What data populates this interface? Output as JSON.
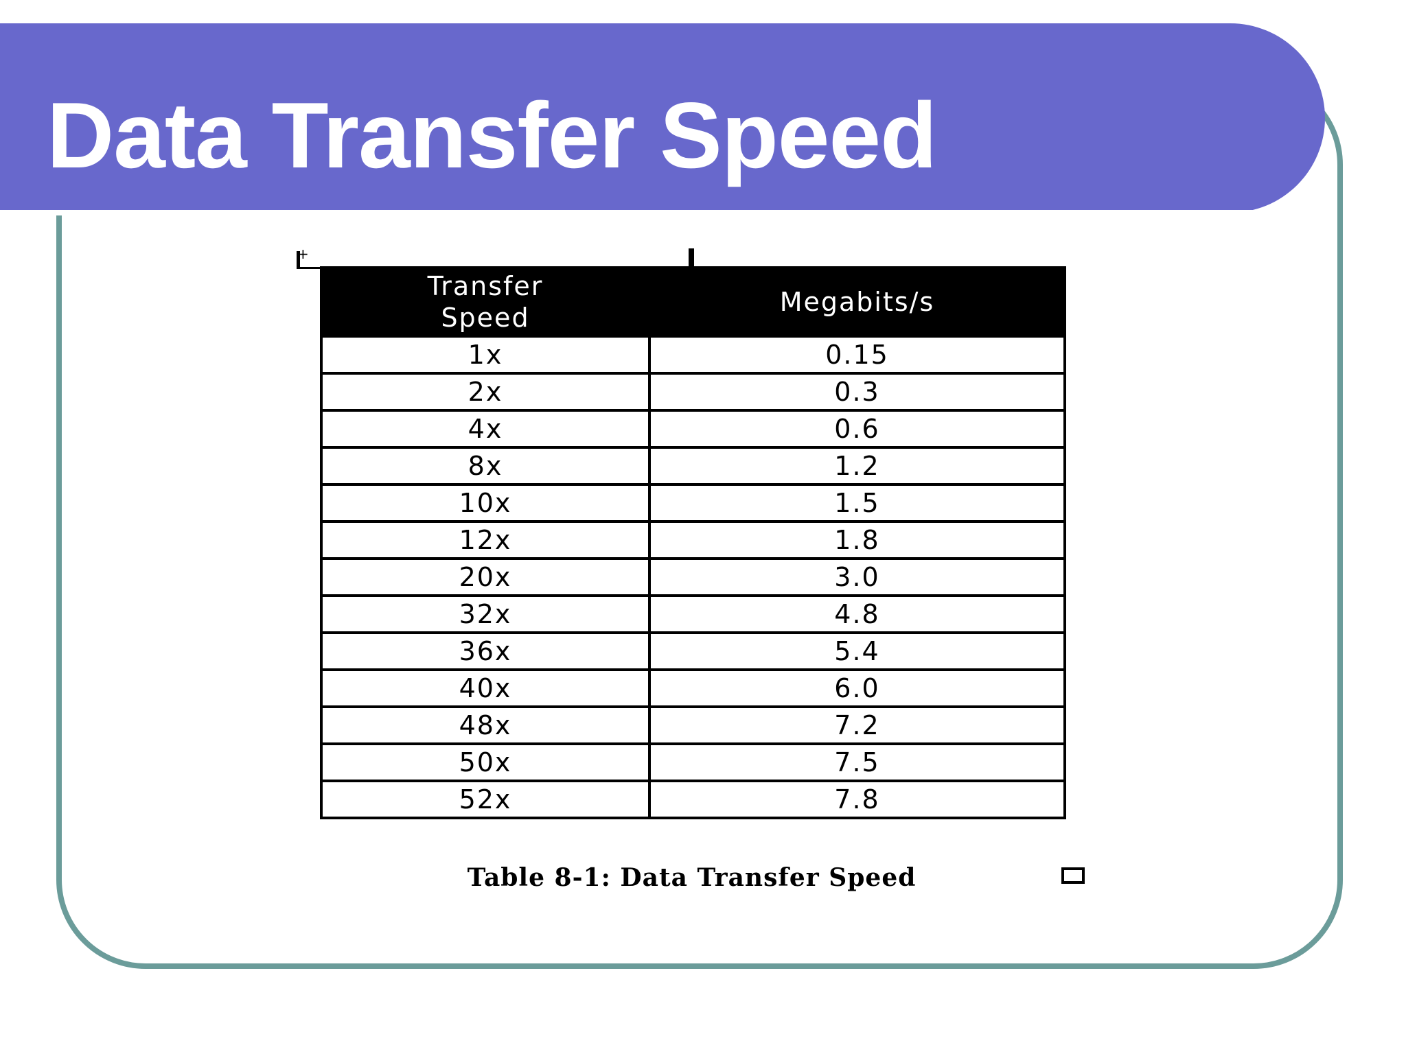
{
  "slide": {
    "title": "Data Transfer Speed",
    "colors": {
      "title_bar": "#6868cc",
      "frame_border": "#6b9c9a",
      "table_header_bg": "#000000"
    }
  },
  "table": {
    "headers": [
      "Transfer Speed",
      "Megabits/s"
    ],
    "rows": [
      [
        "1x",
        "0.15"
      ],
      [
        "2x",
        "0.3"
      ],
      [
        "4x",
        "0.6"
      ],
      [
        "8x",
        "1.2"
      ],
      [
        "10x",
        "1.5"
      ],
      [
        "12x",
        "1.8"
      ],
      [
        "20x",
        "3.0"
      ],
      [
        "32x",
        "4.8"
      ],
      [
        "36x",
        "5.4"
      ],
      [
        "40x",
        "6.0"
      ],
      [
        "48x",
        "7.2"
      ],
      [
        "50x",
        "7.5"
      ],
      [
        "52x",
        "7.8"
      ]
    ],
    "caption": "Table 8-1: Data Transfer Speed"
  }
}
